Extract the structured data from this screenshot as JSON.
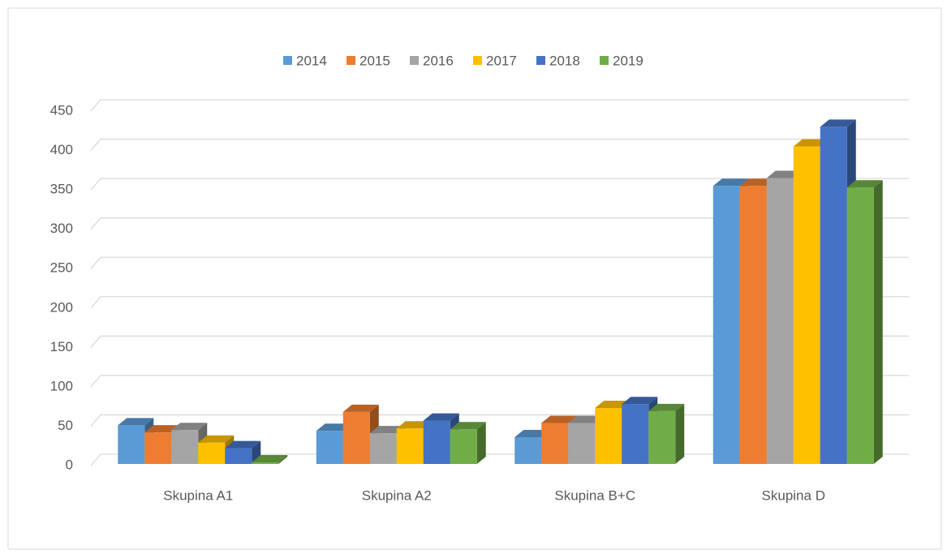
{
  "chart_data": {
    "type": "bar3d",
    "categories": [
      "Skupina A1",
      "Skupina A2",
      "Skupina B+C",
      "Skupina D"
    ],
    "series": [
      {
        "name": "2014",
        "color": "#5b9bd5",
        "values": [
          49,
          42,
          34,
          353
        ]
      },
      {
        "name": "2015",
        "color": "#ed7d31",
        "values": [
          40,
          66,
          52,
          353
        ]
      },
      {
        "name": "2016",
        "color": "#a5a5a5",
        "values": [
          43,
          39,
          52,
          363
        ]
      },
      {
        "name": "2017",
        "color": "#ffc000",
        "values": [
          27,
          45,
          71,
          403
        ]
      },
      {
        "name": "2018",
        "color": "#4472c4",
        "values": [
          20,
          55,
          76,
          428
        ]
      },
      {
        "name": "2019",
        "color": "#70ad47",
        "values": [
          2,
          44,
          67,
          351
        ]
      }
    ],
    "ylim": [
      0,
      450
    ],
    "yticks": [
      0,
      50,
      100,
      150,
      200,
      250,
      300,
      350,
      400,
      450
    ],
    "grid": true,
    "legend": "top"
  }
}
